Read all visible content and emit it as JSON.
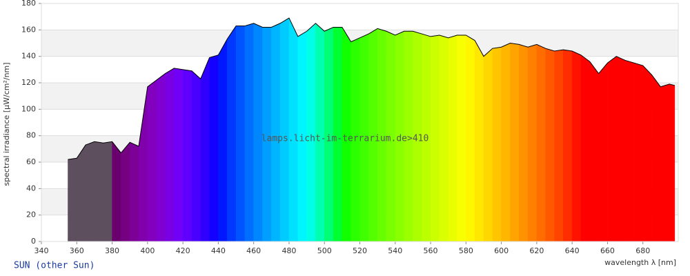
{
  "chart_data": {
    "type": "area",
    "watermark": "lamps.licht-im-terrarium.de>410",
    "caption": "SUN (other Sun)",
    "y_label": "spectral irradiance [µW/cm²/nm]",
    "x_label": "wavelength λ [nm]",
    "x": [
      355,
      360,
      365,
      370,
      375,
      380,
      385,
      390,
      395,
      400,
      405,
      410,
      415,
      420,
      425,
      430,
      435,
      440,
      445,
      450,
      455,
      460,
      465,
      470,
      475,
      480,
      485,
      490,
      495,
      500,
      505,
      510,
      515,
      520,
      525,
      530,
      535,
      540,
      545,
      550,
      555,
      560,
      565,
      570,
      575,
      580,
      585,
      590,
      595,
      600,
      605,
      610,
      615,
      620,
      625,
      630,
      635,
      640,
      645,
      650,
      655,
      660,
      665,
      670,
      675,
      680,
      685,
      690,
      695,
      698
    ],
    "values": [
      62,
      63,
      73,
      75.5,
      74.5,
      75.5,
      67,
      75,
      72,
      117,
      122,
      127,
      131,
      130,
      129,
      123,
      139,
      141,
      153,
      163,
      163,
      165,
      162,
      162,
      165,
      169,
      155,
      159,
      165,
      159,
      162,
      162,
      151,
      154,
      157,
      161,
      159,
      156,
      159,
      159,
      157,
      155,
      156,
      154,
      156,
      156,
      152,
      140,
      146,
      147,
      150,
      149,
      147,
      149,
      146,
      144,
      145,
      144,
      141,
      136,
      127,
      135,
      140,
      137,
      135,
      133,
      126,
      117,
      119,
      118
    ],
    "xlim": [
      340,
      700
    ],
    "ylim": [
      0,
      180
    ],
    "xticks": [
      340,
      360,
      380,
      400,
      420,
      440,
      460,
      480,
      500,
      520,
      540,
      560,
      580,
      600,
      620,
      640,
      660,
      680
    ],
    "yticks": [
      0,
      20,
      40,
      60,
      80,
      100,
      120,
      140,
      160,
      180
    ],
    "uv_color": "#5e4f5e",
    "line_color": "#000000",
    "band_color": "#f2f2f2",
    "grid": true
  }
}
